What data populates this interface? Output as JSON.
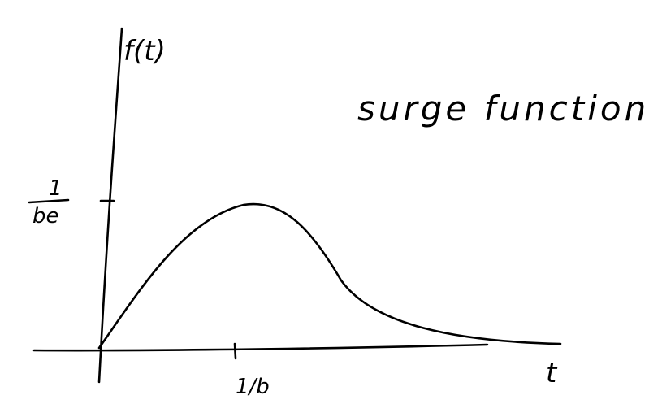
{
  "figure": {
    "title": "surge function",
    "y_axis_label": "f(t)",
    "x_axis_label": "t",
    "y_tick": {
      "numerator": "1",
      "denominator": "be"
    },
    "x_tick": "1/b",
    "colors": {
      "ink": "#000000",
      "background": "#ffffff"
    }
  }
}
